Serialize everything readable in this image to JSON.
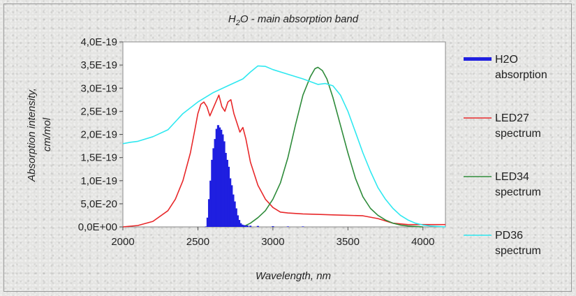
{
  "chart_data": {
    "type": "line",
    "title_parts": {
      "h": "H",
      "sub": "2",
      "rest": "O  - main absorption band"
    },
    "xlabel": "Wavelength, nm",
    "ylabel_line1": "Absorption intensity,",
    "ylabel_line2": "cm/mol",
    "xlim": [
      2000,
      4150
    ],
    "ylim": [
      0,
      4e-19
    ],
    "xticks": [
      2000,
      2500,
      3000,
      3500,
      4000
    ],
    "xtick_labels": [
      "2000",
      "2500",
      "3000",
      "3500",
      "4000"
    ],
    "yticks": [
      0,
      5e-20,
      1e-19,
      1.5e-19,
      2e-19,
      2.5e-19,
      3e-19,
      3.5e-19,
      4e-19
    ],
    "ytick_labels": [
      "0,0E+00",
      "5,0E-20",
      "1,0E-19",
      "1,5E-19",
      "2,0E-19",
      "2,5E-19",
      "3,0E-19",
      "3,5E-19",
      "4,0E-19"
    ],
    "grid": false,
    "legend_position": "right",
    "series": [
      {
        "name_lines": [
          "H2O",
          "absorption"
        ],
        "kind": "bars",
        "color": "#1f1fe0",
        "x": [
          2555,
          2565,
          2575,
          2585,
          2595,
          2605,
          2615,
          2625,
          2635,
          2645,
          2655,
          2665,
          2675,
          2685,
          2695,
          2705,
          2715,
          2725,
          2735,
          2745,
          2755,
          2765,
          2775,
          2785,
          2795,
          2805,
          2815,
          2830,
          2850,
          2900,
          3000,
          3100,
          3200
        ],
        "y": [
          1e-21,
          2e-20,
          6e-20,
          1e-19,
          1.45e-19,
          1.7e-19,
          1.9e-19,
          2.12e-19,
          2.2e-19,
          2.15e-19,
          2.1e-19,
          2e-19,
          1.85e-19,
          1.6e-19,
          1.45e-19,
          1.3e-19,
          1.05e-19,
          9e-20,
          7e-20,
          5.5e-20,
          4e-20,
          2.5e-20,
          1.5e-20,
          8e-21,
          5e-21,
          4e-21,
          3e-21,
          3e-21,
          2.5e-21,
          2e-21,
          1.5e-21,
          1e-21,
          1e-21
        ]
      },
      {
        "name_lines": [
          "LED27",
          "spectrum"
        ],
        "kind": "line",
        "color": "#e8282a",
        "x": [
          2000,
          2100,
          2200,
          2300,
          2350,
          2400,
          2450,
          2480,
          2500,
          2520,
          2540,
          2560,
          2580,
          2600,
          2620,
          2640,
          2660,
          2680,
          2700,
          2720,
          2740,
          2760,
          2780,
          2800,
          2820,
          2850,
          2900,
          2950,
          3000,
          3050,
          3100,
          3200,
          3300,
          3400,
          3500,
          3600,
          3700,
          3800,
          3900,
          4000,
          4150
        ],
        "y": [
          0,
          3e-21,
          1.2e-20,
          3.5e-20,
          6e-20,
          1e-19,
          1.6e-19,
          2.1e-19,
          2.45e-19,
          2.65e-19,
          2.7e-19,
          2.6e-19,
          2.4e-19,
          2.55e-19,
          2.7e-19,
          2.85e-19,
          2.6e-19,
          2.5e-19,
          2.7e-19,
          2.75e-19,
          2.45e-19,
          2.25e-19,
          2.05e-19,
          2.15e-19,
          1.9e-19,
          1.4e-19,
          9e-20,
          6e-20,
          4.2e-20,
          3.2e-20,
          3e-20,
          2.8e-20,
          2.7e-20,
          2.6e-20,
          2.5e-20,
          2.4e-20,
          1.8e-20,
          8e-21,
          5e-21,
          5e-21,
          5e-21
        ]
      },
      {
        "name_lines": [
          "LED34",
          "spectrum"
        ],
        "kind": "line",
        "color": "#2e8b3a",
        "x": [
          2800,
          2850,
          2900,
          2950,
          3000,
          3050,
          3100,
          3150,
          3200,
          3250,
          3280,
          3300,
          3330,
          3360,
          3400,
          3450,
          3500,
          3550,
          3600,
          3650,
          3700,
          3750,
          3800,
          3850,
          3900,
          4000
        ],
        "y": [
          0,
          8e-21,
          2e-20,
          3.5e-20,
          6e-20,
          9.5e-20,
          1.5e-19,
          2.2e-19,
          2.85e-19,
          3.25e-19,
          3.42e-19,
          3.45e-19,
          3.38e-19,
          3.2e-19,
          2.8e-19,
          2.2e-19,
          1.6e-19,
          1.05e-19,
          6.5e-20,
          4e-20,
          2.5e-20,
          1.5e-20,
          8e-21,
          4e-21,
          2e-21,
          0
        ]
      },
      {
        "name_lines": [
          "PD36",
          "spectrum"
        ],
        "kind": "line",
        "color": "#2fe8f0",
        "x": [
          2000,
          2050,
          2100,
          2200,
          2300,
          2400,
          2500,
          2600,
          2700,
          2800,
          2850,
          2900,
          2950,
          3000,
          3100,
          3200,
          3300,
          3350,
          3400,
          3450,
          3500,
          3550,
          3600,
          3650,
          3700,
          3750,
          3800,
          3850,
          3900,
          3950,
          4000,
          4050,
          4150
        ],
        "y": [
          1.8e-19,
          1.83e-19,
          1.85e-19,
          1.95e-19,
          2.1e-19,
          2.45e-19,
          2.7e-19,
          2.9e-19,
          3.05e-19,
          3.2e-19,
          3.35e-19,
          3.48e-19,
          3.47e-19,
          3.4e-19,
          3.3e-19,
          3.2e-19,
          3.08e-19,
          3.1e-19,
          3.05e-19,
          2.85e-19,
          2.5e-19,
          2.05e-19,
          1.6e-19,
          1.2e-19,
          8.5e-20,
          6e-20,
          4e-20,
          2.5e-20,
          1.5e-20,
          8e-21,
          4e-21,
          2e-21,
          0
        ]
      }
    ]
  }
}
